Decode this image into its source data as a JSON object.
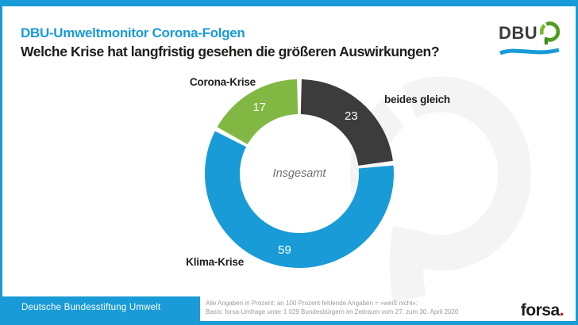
{
  "colors": {
    "accent": "#199bd7",
    "green": "#80b843",
    "dark": "#3c3c3c",
    "watermark": "#f4f4f5",
    "red": "#e30613"
  },
  "header": {
    "title": "DBU-Umweltmonitor Corona-Folgen",
    "logo_text": "DBU"
  },
  "chart_data": {
    "type": "donut",
    "title": "Welche Krise hat langfristig gesehen die größeren Auswirkungen?",
    "center_label": "Insgesamt",
    "unit": "Prozent",
    "start": "top",
    "direction": "clockwise",
    "slices": [
      {
        "label": "beides gleich",
        "value": 23,
        "color": "#3c3c3c"
      },
      {
        "label": "Klima-Krise",
        "value": 59,
        "color": "#199bd7"
      },
      {
        "label": "Corona-Krise",
        "value": 17,
        "color": "#80b843"
      }
    ]
  },
  "footer": {
    "org": "Deutsche Bundesstiftung Umwelt",
    "note_line1": "Alle Angaben in Prozent; an 100 Prozent fehlende Angaben = »weiß nicht«;",
    "note_line2": "Basis: forsa-Umfrage unter 1 029 Bundesbürgern im Zeitraum vom 27. zum 30. April 2020",
    "brand": "forsa",
    "brand_dot": "."
  }
}
